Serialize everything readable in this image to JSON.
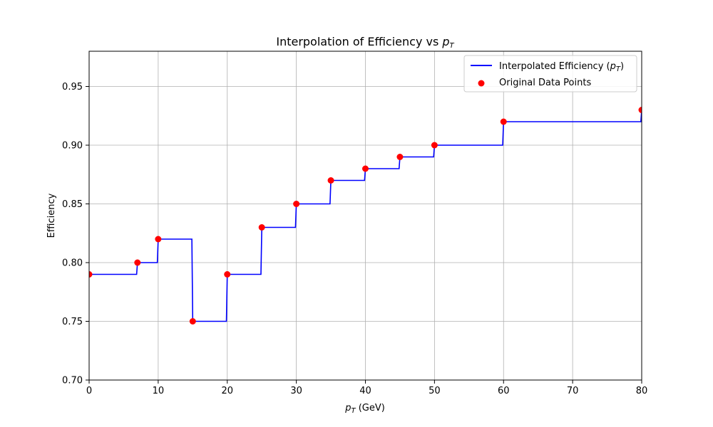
{
  "chart_data": {
    "type": "line",
    "title": "Interpolation of Efficiency vs ",
    "title_var": "p",
    "title_sub": "T",
    "xlabel_var": "p",
    "xlabel_sub": "T",
    "xlabel_unit": " (GeV)",
    "ylabel": "Efficiency",
    "xlim": [
      0,
      80
    ],
    "ylim": [
      0.7,
      0.98
    ],
    "xticks": [
      0,
      10,
      20,
      30,
      40,
      50,
      60,
      70,
      80
    ],
    "yticks": [
      0.7,
      0.75,
      0.8,
      0.85,
      0.9,
      0.95
    ],
    "grid": true,
    "legend_position": "top-right",
    "series": [
      {
        "name": "Interpolated Efficiency (",
        "name_var": "p",
        "name_sub": "T",
        "name_end": ")",
        "kind": "step-previous",
        "color": "#0000ff",
        "x": [
          0,
          7,
          10,
          15,
          20,
          25,
          30,
          35,
          40,
          45,
          50,
          60,
          80
        ],
        "y": [
          0.79,
          0.8,
          0.82,
          0.75,
          0.79,
          0.83,
          0.85,
          0.87,
          0.88,
          0.89,
          0.9,
          0.92,
          0.93
        ]
      },
      {
        "name": "Original Data Points",
        "kind": "scatter",
        "color": "#ff0000",
        "x": [
          0,
          7,
          10,
          15,
          20,
          25,
          30,
          35,
          40,
          45,
          50,
          60,
          80
        ],
        "y": [
          0.79,
          0.8,
          0.82,
          0.75,
          0.79,
          0.83,
          0.85,
          0.87,
          0.88,
          0.89,
          0.9,
          0.92,
          0.93
        ]
      }
    ]
  }
}
